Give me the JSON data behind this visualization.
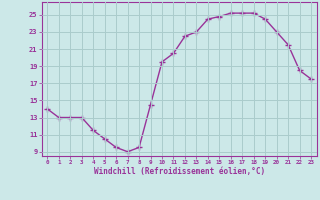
{
  "x": [
    0,
    1,
    2,
    3,
    4,
    5,
    6,
    7,
    8,
    9,
    10,
    11,
    12,
    13,
    14,
    15,
    16,
    17,
    18,
    19,
    20,
    21,
    22,
    23
  ],
  "y": [
    14.0,
    13.0,
    13.0,
    13.0,
    11.5,
    10.5,
    9.5,
    9.0,
    9.5,
    14.5,
    19.5,
    20.5,
    22.5,
    23.0,
    24.5,
    24.8,
    25.2,
    25.2,
    25.2,
    24.5,
    23.0,
    21.5,
    18.5,
    17.5
  ],
  "line_color": "#993399",
  "marker": "+",
  "background_color": "#cce8e8",
  "grid_color": "#aacccc",
  "xlabel": "Windchill (Refroidissement éolien,°C)",
  "xlabel_color": "#993399",
  "tick_color": "#993399",
  "ylabel_ticks": [
    9,
    11,
    13,
    15,
    17,
    19,
    21,
    23,
    25
  ],
  "xlim": [
    -0.5,
    23.5
  ],
  "ylim": [
    8.5,
    26.5
  ],
  "xticks": [
    0,
    1,
    2,
    3,
    4,
    5,
    6,
    7,
    8,
    9,
    10,
    11,
    12,
    13,
    14,
    15,
    16,
    17,
    18,
    19,
    20,
    21,
    22,
    23
  ]
}
